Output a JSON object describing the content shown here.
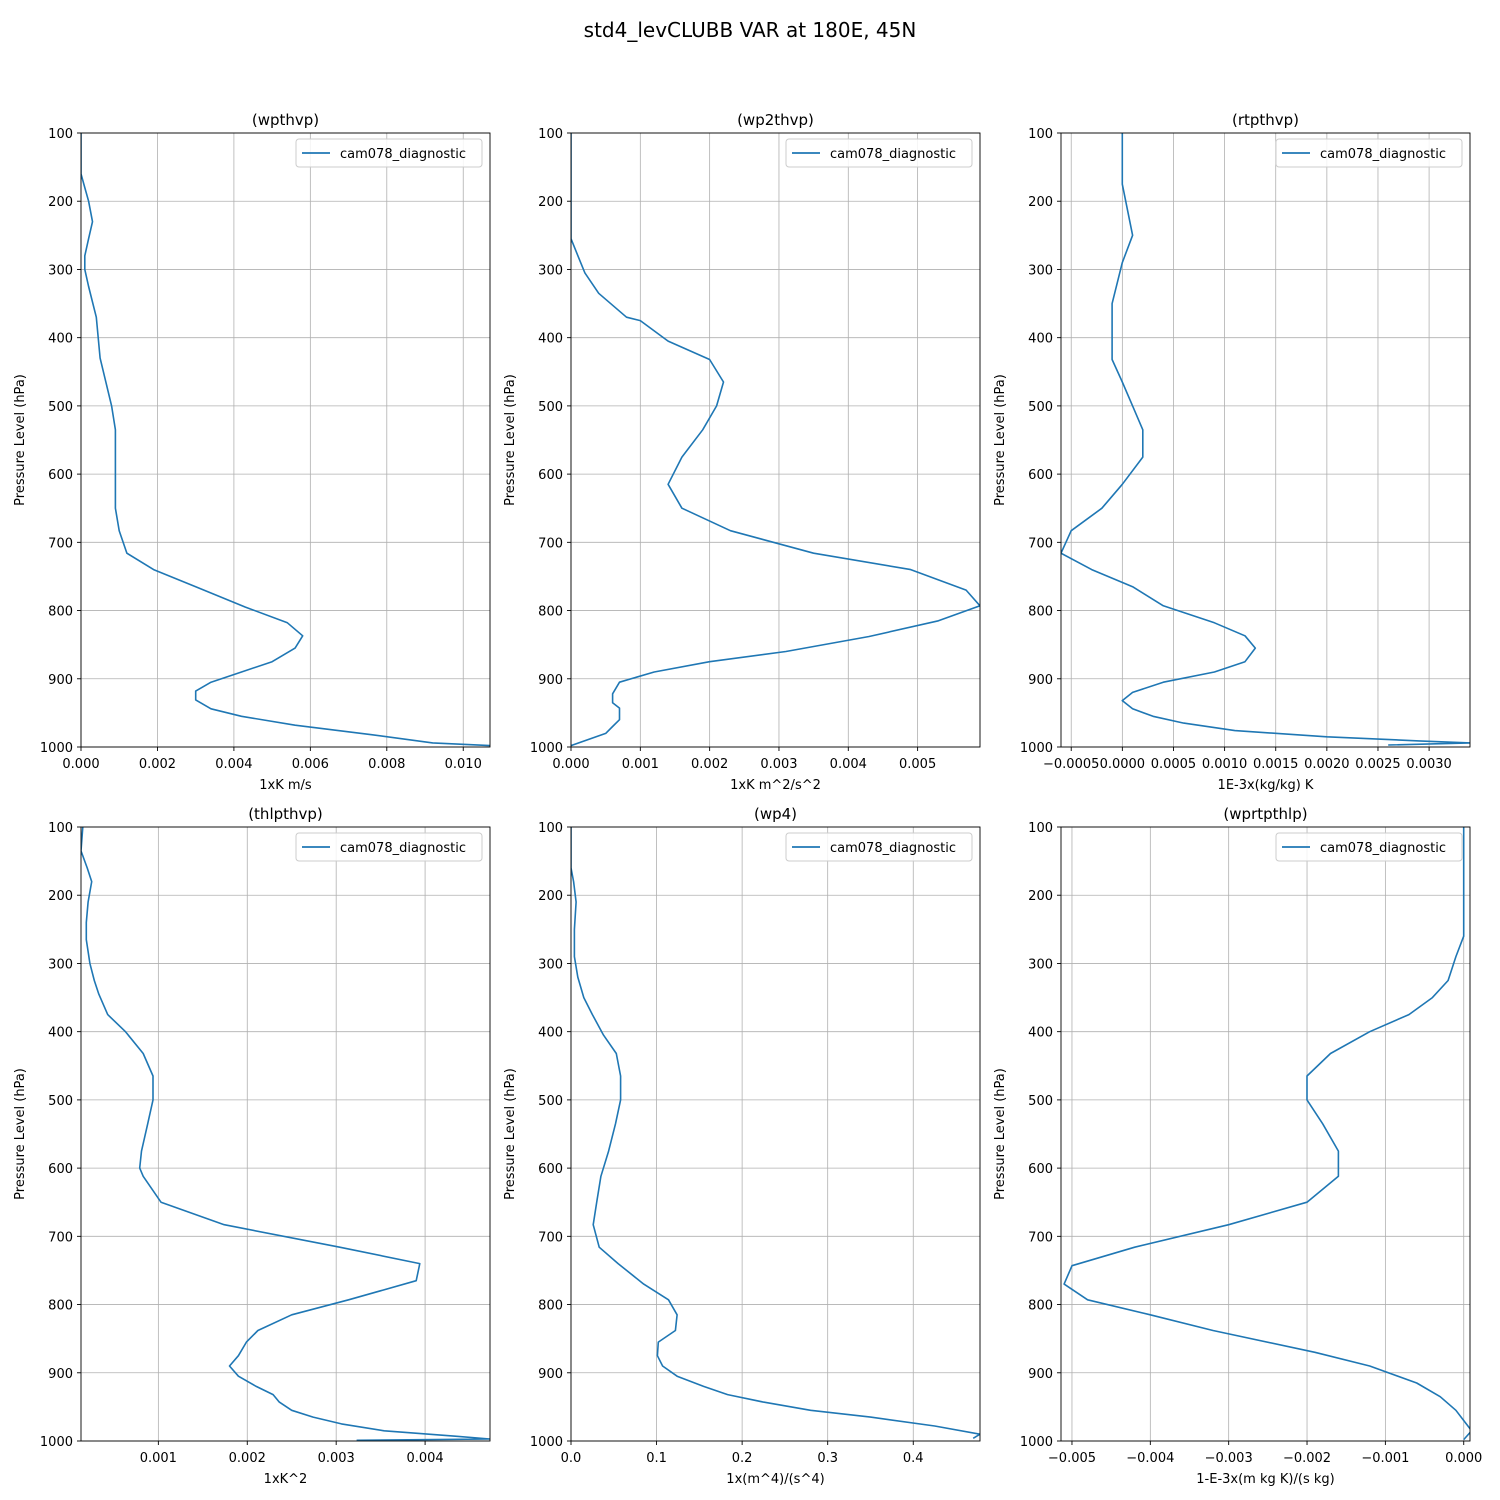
{
  "figure_title": "std4_levCLUBB VAR at 180E, 45N",
  "chart_data": [
    {
      "type": "line",
      "title": "(wpthvp)",
      "xlabel": "1xK m/s",
      "ylabel": "Pressure Level (hPa)",
      "xlim": [
        0,
        0.0107
      ],
      "ylim": [
        1000,
        100
      ],
      "xticks": [
        0,
        0.002,
        0.004,
        0.006,
        0.008,
        0.01
      ],
      "xticklabels": [
        "0.000",
        "0.002",
        "0.004",
        "0.006",
        "0.008",
        "0.010"
      ],
      "yticks": [
        100,
        200,
        300,
        400,
        500,
        600,
        700,
        800,
        900,
        1000
      ],
      "yticklabels": [
        "100",
        "200",
        "300",
        "400",
        "500",
        "600",
        "700",
        "800",
        "900",
        "1000"
      ],
      "grid": true,
      "legend": "top-right",
      "series": [
        {
          "name": "cam078_diagnostic",
          "color": "#1f77b4",
          "x": [
            0.0,
            0.0,
            0.0,
            0.0001,
            0.0002,
            0.0003,
            0.0002,
            0.0001,
            0.0001,
            0.0002,
            0.0004,
            0.0005,
            0.0008,
            0.0009,
            0.0009,
            0.0009,
            0.0009,
            0.001,
            0.0012,
            0.0019,
            0.003,
            0.0043,
            0.0054,
            0.0058,
            0.0056,
            0.005,
            0.0042,
            0.0034,
            0.003,
            0.003,
            0.0034,
            0.0042,
            0.0056,
            0.0076,
            0.0092,
            0.0107
          ],
          "y": [
            100,
            130,
            160,
            180,
            200,
            230,
            255,
            280,
            300,
            325,
            370,
            430,
            500,
            535,
            570,
            615,
            650,
            683,
            716,
            740,
            765,
            795,
            818,
            837,
            855,
            875,
            890,
            905,
            918,
            931,
            944,
            955,
            968,
            982,
            994,
            998
          ]
        }
      ]
    },
    {
      "type": "line",
      "title": "(wp2thvp)",
      "xlabel": "1xK m^2/s^2",
      "ylabel": "Pressure Level (hPa)",
      "xlim": [
        0,
        0.0059
      ],
      "ylim": [
        1000,
        100
      ],
      "xticks": [
        0,
        0.001,
        0.002,
        0.003,
        0.004,
        0.005
      ],
      "xticklabels": [
        "0.000",
        "0.001",
        "0.002",
        "0.003",
        "0.004",
        "0.005"
      ],
      "yticks": [
        100,
        200,
        300,
        400,
        500,
        600,
        700,
        800,
        900,
        1000
      ],
      "yticklabels": [
        "100",
        "200",
        "300",
        "400",
        "500",
        "600",
        "700",
        "800",
        "900",
        "1000"
      ],
      "grid": true,
      "legend": "top-right",
      "series": [
        {
          "name": "cam078_diagnostic",
          "color": "#1f77b4",
          "x": [
            0.0,
            0.0,
            0.0,
            0.0001,
            0.0002,
            0.0004,
            0.0008,
            0.001,
            0.0014,
            0.002,
            0.0022,
            0.0021,
            0.0019,
            0.0016,
            0.0014,
            0.0016,
            0.0023,
            0.0035,
            0.0049,
            0.0057,
            0.0059,
            0.0053,
            0.0043,
            0.0031,
            0.002,
            0.0012,
            0.0007,
            0.0006,
            0.0006,
            0.0007,
            0.0007,
            0.0006,
            0.0005,
            0.0
          ],
          "y": [
            100,
            200,
            255,
            280,
            305,
            335,
            370,
            375,
            405,
            432,
            465,
            500,
            535,
            575,
            615,
            650,
            683,
            716,
            740,
            770,
            793,
            815,
            838,
            860,
            875,
            890,
            905,
            922,
            935,
            943,
            960,
            970,
            980,
            998
          ]
        }
      ]
    },
    {
      "type": "line",
      "title": "(rtpthvp)",
      "xlabel": "1E-3x(kg/kg) K",
      "ylabel": "Pressure Level (hPa)",
      "xlim": [
        -0.0006,
        0.0034
      ],
      "ylim": [
        1000,
        100
      ],
      "xticks": [
        -0.0005,
        0.0,
        0.0005,
        0.001,
        0.0015,
        0.002,
        0.0025,
        0.003
      ],
      "xticklabels": [
        "−0.0005",
        "0.0000",
        "0.0005",
        "0.0010",
        "0.0015",
        "0.0020",
        "0.0025",
        "0.0030"
      ],
      "yticks": [
        100,
        200,
        300,
        400,
        500,
        600,
        700,
        800,
        900,
        1000
      ],
      "yticklabels": [
        "100",
        "200",
        "300",
        "400",
        "500",
        "600",
        "700",
        "800",
        "900",
        "1000"
      ],
      "grid": true,
      "legend": "top-right",
      "series": [
        {
          "name": "cam078_diagnostic",
          "color": "#1f77b4",
          "x": [
            0.0,
            0.0,
            0.0001,
            0.0,
            -0.0001,
            -0.0001,
            -0.0001,
            -0.0001,
            0.0,
            0.0001,
            0.0002,
            0.0002,
            0.0,
            -0.0002,
            -0.0005,
            -0.0006,
            -0.0003,
            0.0001,
            0.0004,
            0.0009,
            0.0012,
            0.0013,
            0.0012,
            0.0009,
            0.0004,
            0.0001,
            0.0,
            0.0001,
            0.0003,
            0.0006,
            0.0011,
            0.002,
            0.0029,
            0.0034,
            0.0026
          ],
          "y": [
            100,
            175,
            250,
            290,
            350,
            370,
            400,
            432,
            465,
            500,
            535,
            575,
            615,
            650,
            683,
            716,
            740,
            765,
            793,
            818,
            837,
            855,
            875,
            890,
            905,
            920,
            932,
            944,
            955,
            965,
            976,
            985,
            991,
            994,
            997
          ]
        }
      ]
    },
    {
      "type": "line",
      "title": "(thlpthvp)",
      "xlabel": "1xK^2",
      "ylabel": "Pressure Level (hPa)",
      "xlim": [
        0.00013,
        0.00473
      ],
      "ylim": [
        1000,
        100
      ],
      "xticks": [
        0.001,
        0.002,
        0.003,
        0.004
      ],
      "xticklabels": [
        "0.001",
        "0.002",
        "0.003",
        "0.004"
      ],
      "yticks": [
        100,
        200,
        300,
        400,
        500,
        600,
        700,
        800,
        900,
        1000
      ],
      "yticklabels": [
        "100",
        "200",
        "300",
        "400",
        "500",
        "600",
        "700",
        "800",
        "900",
        "1000"
      ],
      "grid": true,
      "legend": "top-right",
      "series": [
        {
          "name": "cam078_diagnostic",
          "color": "#1f77b4",
          "x": [
            0.00015,
            0.00013,
            0.0002,
            0.00025,
            0.00023,
            0.00021,
            0.00019,
            0.00019,
            0.00023,
            0.00028,
            0.00033,
            0.00043,
            0.00063,
            0.00083,
            0.00094,
            0.00094,
            0.00088,
            0.00081,
            0.00079,
            0.00083,
            0.00103,
            0.00174,
            0.00304,
            0.00394,
            0.0039,
            0.00314,
            0.0025,
            0.00212,
            0.00199,
            0.0019,
            0.0018,
            0.0019,
            0.0021,
            0.00229,
            0.00236,
            0.0025,
            0.00274,
            0.00306,
            0.00354,
            0.00434,
            0.00473,
            0.00323
          ],
          "y": [
            100,
            135,
            160,
            180,
            195,
            210,
            240,
            265,
            300,
            325,
            345,
            375,
            400,
            432,
            465,
            500,
            535,
            575,
            600,
            612,
            650,
            683,
            716,
            740,
            765,
            793,
            815,
            838,
            855,
            875,
            890,
            905,
            920,
            932,
            943,
            955,
            965,
            975,
            985,
            993,
            997,
            999
          ]
        }
      ]
    },
    {
      "type": "line",
      "title": "(wp4)",
      "xlabel": "1x(m^4)/(s^4)",
      "ylabel": "Pressure Level (hPa)",
      "xlim": [
        0,
        0.478
      ],
      "ylim": [
        1000,
        100
      ],
      "xticks": [
        0,
        0.1,
        0.2,
        0.3,
        0.4
      ],
      "xticklabels": [
        "0.0",
        "0.1",
        "0.2",
        "0.3",
        "0.4"
      ],
      "yticks": [
        100,
        200,
        300,
        400,
        500,
        600,
        700,
        800,
        900,
        1000
      ],
      "yticklabels": [
        "100",
        "200",
        "300",
        "400",
        "500",
        "600",
        "700",
        "800",
        "900",
        "1000"
      ],
      "grid": true,
      "legend": "top-right",
      "series": [
        {
          "name": "cam078_diagnostic",
          "color": "#1f77b4",
          "x": [
            0.0,
            0.0,
            0.003,
            0.006,
            0.004,
            0.004,
            0.004,
            0.008,
            0.015,
            0.025,
            0.038,
            0.053,
            0.058,
            0.058,
            0.052,
            0.044,
            0.035,
            0.03,
            0.026,
            0.033,
            0.055,
            0.085,
            0.114,
            0.124,
            0.122,
            0.102,
            0.101,
            0.107,
            0.124,
            0.155,
            0.183,
            0.225,
            0.28,
            0.35,
            0.425,
            0.478,
            0.47
          ],
          "y": [
            100,
            160,
            180,
            210,
            250,
            270,
            290,
            320,
            350,
            375,
            405,
            432,
            465,
            500,
            535,
            575,
            612,
            650,
            683,
            716,
            740,
            770,
            793,
            815,
            838,
            855,
            875,
            890,
            905,
            920,
            932,
            943,
            955,
            965,
            978,
            990,
            996
          ]
        }
      ]
    },
    {
      "type": "line",
      "title": "(wprtpthlp)",
      "xlabel": "1-E-3x(m kg K)/(s kg)",
      "ylabel": "Pressure Level (hPa)",
      "xlim": [
        -0.00514,
        8e-05
      ],
      "ylim": [
        1000,
        100
      ],
      "xticks": [
        -0.005,
        -0.004,
        -0.003,
        -0.002,
        -0.001,
        0.0
      ],
      "xticklabels": [
        "−0.005",
        "−0.004",
        "−0.003",
        "−0.002",
        "−0.001",
        "0.000"
      ],
      "yticks": [
        100,
        200,
        300,
        400,
        500,
        600,
        700,
        800,
        900,
        1000
      ],
      "yticklabels": [
        "100",
        "200",
        "300",
        "400",
        "500",
        "600",
        "700",
        "800",
        "900",
        "1000"
      ],
      "grid": true,
      "legend": "top-right",
      "series": [
        {
          "name": "cam078_diagnostic",
          "color": "#1f77b4",
          "x": [
            0.0,
            0.0,
            0.0,
            -0.0001,
            -0.0002,
            -0.0004,
            -0.0007,
            -0.0012,
            -0.0017,
            -0.002,
            -0.002,
            -0.0018,
            -0.0016,
            -0.0016,
            -0.002,
            -0.003,
            -0.0042,
            -0.005,
            -0.0051,
            -0.0048,
            -0.004,
            -0.0032,
            -0.0019,
            -0.0012,
            -0.0006,
            -0.0003,
            -0.0001,
            0.0,
            0.0001,
            0.0
          ],
          "y": [
            100,
            200,
            260,
            290,
            325,
            350,
            375,
            400,
            432,
            465,
            500,
            535,
            575,
            612,
            650,
            683,
            716,
            743,
            770,
            793,
            815,
            838,
            870,
            890,
            915,
            935,
            955,
            970,
            985,
            998
          ]
        }
      ]
    }
  ]
}
